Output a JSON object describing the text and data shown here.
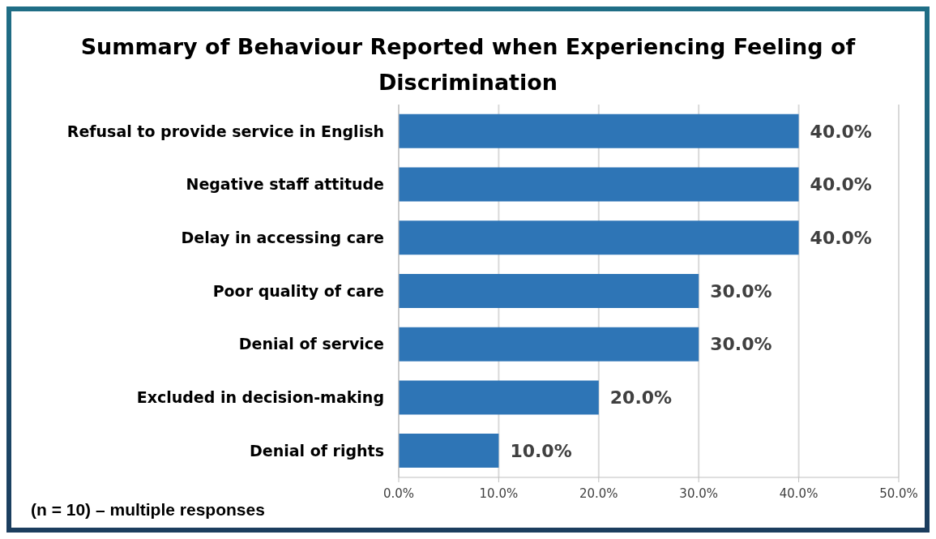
{
  "chart_data": {
    "type": "bar",
    "orientation": "horizontal",
    "title": "Summary of Behaviour Reported when Experiencing Feeling of Discrimination",
    "categories": [
      "Refusal to provide service in English",
      "Negative staff attitude",
      "Delay in accessing care",
      "Poor quality of care",
      "Denial of service",
      "Excluded in decision-making",
      "Denial of rights"
    ],
    "values": [
      40,
      40,
      40,
      30,
      30,
      20,
      10
    ],
    "value_labels": [
      "40.0%",
      "40.0%",
      "40.0%",
      "30.0%",
      "30.0%",
      "20.0%",
      "10.0%"
    ],
    "color": "#2e75b6",
    "xlim": [
      0,
      50
    ],
    "xticks": [
      {
        "value": 0,
        "label": "0.0%"
      },
      {
        "value": 10,
        "label": "10.0%"
      },
      {
        "value": 20,
        "label": "20.0%"
      },
      {
        "value": 30,
        "label": "30.0%"
      },
      {
        "value": 40,
        "label": "40.0%"
      },
      {
        "value": 50,
        "label": "50.0%"
      }
    ],
    "grid": "x",
    "annotations": [
      "(n = 10) – multiple responses"
    ]
  }
}
